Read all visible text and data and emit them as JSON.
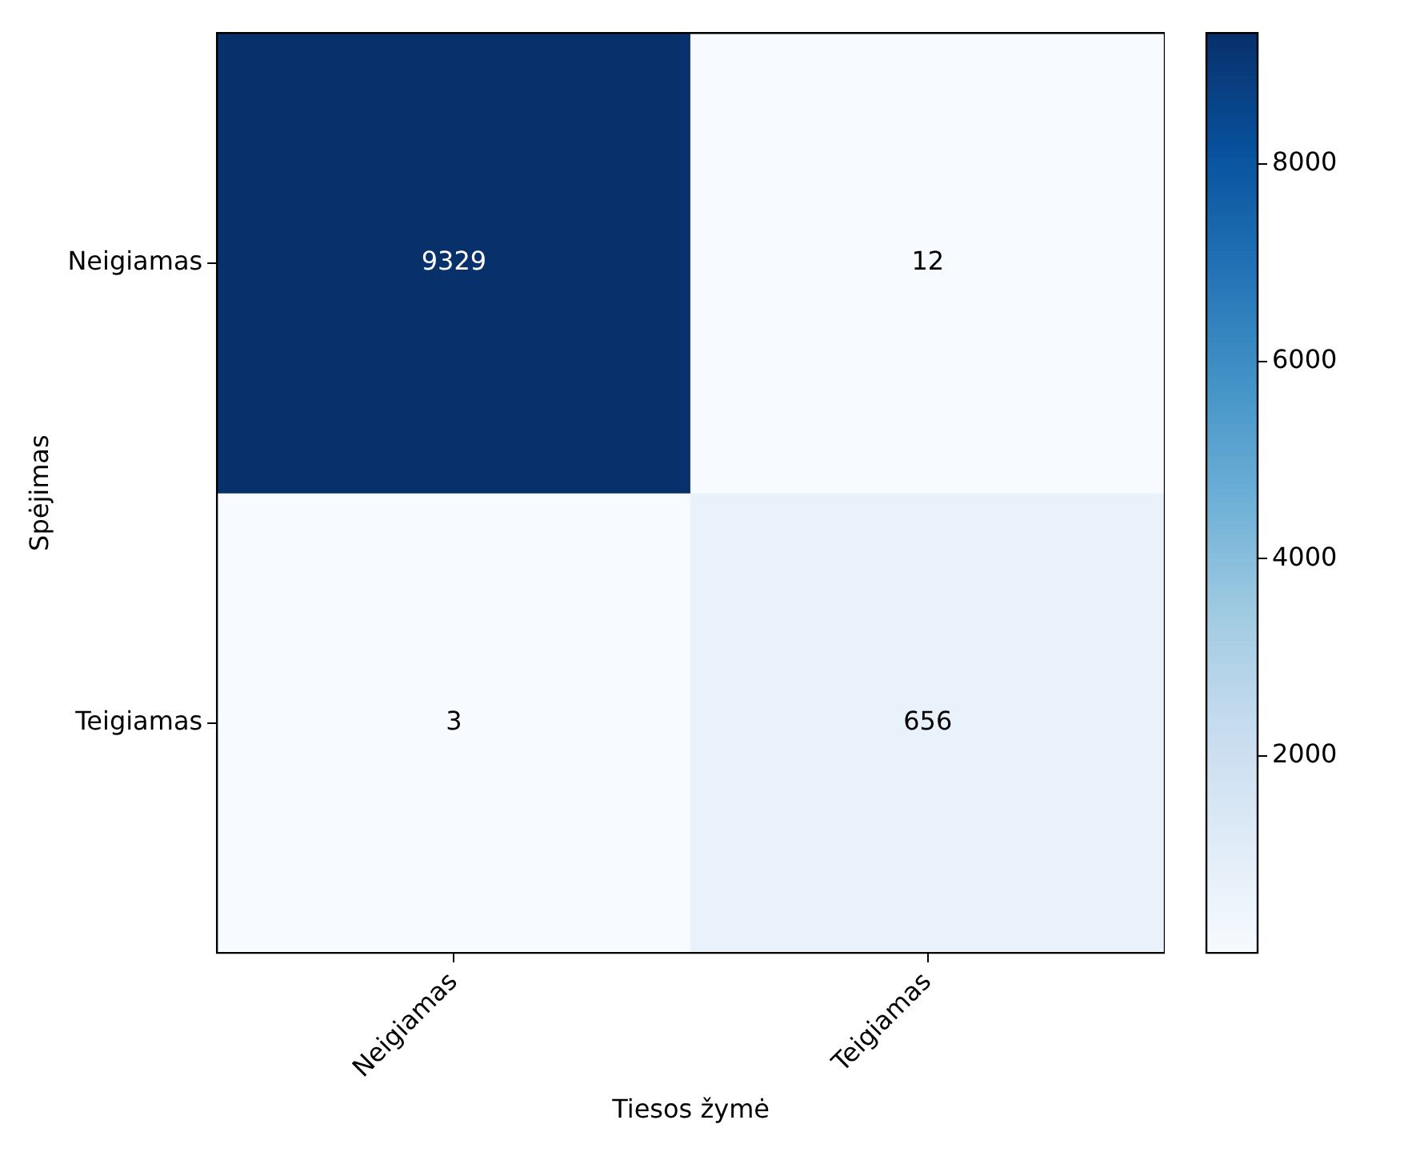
{
  "chart_data": {
    "type": "heatmap",
    "xlabel": "Tiesos žymė",
    "ylabel": "Spėjimas",
    "categories": [
      "Neigiamas",
      "Teigiamas"
    ],
    "y_categories": [
      "Neigiamas",
      "Teigiamas"
    ],
    "cells": [
      [
        9329,
        12
      ],
      [
        3,
        656
      ]
    ],
    "clim": [
      3,
      9329
    ],
    "cticks": [
      2000,
      4000,
      6000,
      8000
    ],
    "data_labels": true
  }
}
